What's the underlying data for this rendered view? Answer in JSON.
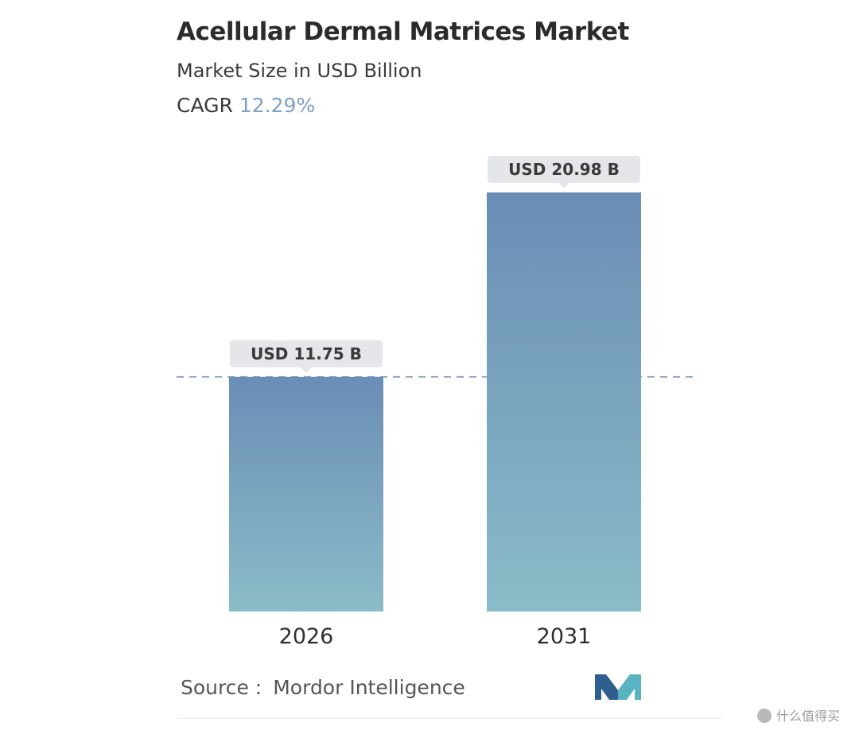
{
  "chart_data": {
    "type": "bar",
    "title": "Acellular Dermal Matrices Market",
    "subtitle": "Market Size in USD Billion",
    "cagr_label": "CAGR",
    "cagr_value": "12.29%",
    "categories": [
      "2026",
      "2031"
    ],
    "values": [
      11.75,
      20.98
    ],
    "value_labels": [
      "USD 11.75 B",
      "USD 20.98 B"
    ],
    "ylim": [
      0,
      20.98
    ],
    "grid": false,
    "reference_line": 11.75,
    "bar_gradient_top": "#6a8db5",
    "bar_gradient_bottom": "#8bbcc8",
    "label_bg": "#e4e6e9"
  },
  "source": {
    "label": "Source :",
    "name": "Mordor Intelligence"
  },
  "logo_icon": "mordor-intelligence-logo",
  "watermark": {
    "text": "什么值得买"
  }
}
